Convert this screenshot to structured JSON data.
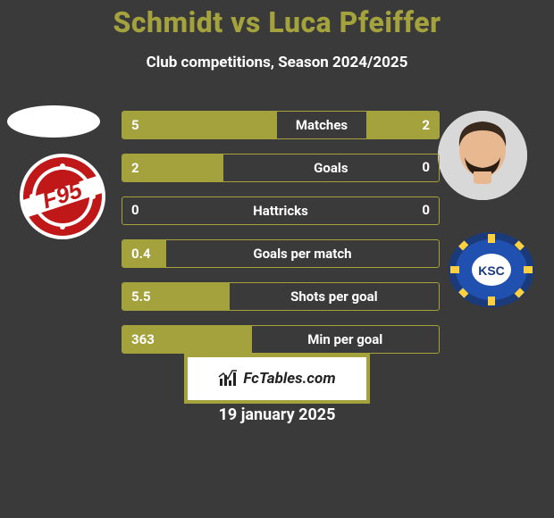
{
  "title_color": "#a4a23c",
  "title": "Schmidt vs Luca Pfeiffer",
  "subtitle": "Club competitions, Season 2024/2025",
  "date": "19 january 2025",
  "footer_logo_text": "FcTables.com",
  "footer_border_color": "#a4a23c",
  "bar_color": "#a4a23c",
  "background_color": "#3a3a3a",
  "text_color": "#ffffff",
  "rows": [
    {
      "label": "Matches",
      "left": "5",
      "right": "2",
      "left_pct": 46,
      "right_pct": 20
    },
    {
      "label": "Goals",
      "left": "2",
      "right": "0",
      "left_pct": 29,
      "right_pct": 0
    },
    {
      "label": "Hattricks",
      "left": "0",
      "right": "0",
      "left_pct": 0,
      "right_pct": 0
    },
    {
      "label": "Goals per match",
      "left": "0.4",
      "right": "",
      "left_pct": 11,
      "right_pct": 0
    },
    {
      "label": "Shots per goal",
      "left": "5.5",
      "right": "",
      "left_pct": 31,
      "right_pct": 0
    },
    {
      "label": "Min per goal",
      "left": "363",
      "right": "",
      "left_pct": 38,
      "right_pct": 0
    }
  ],
  "club_left": {
    "outer": "#ffffff",
    "ring": "#c01818",
    "band": "#ffffff",
    "text": "F95"
  },
  "club_right": {
    "outer": "#1b3a7a",
    "inner": "#2050b0",
    "center": "#ffffff",
    "text": "KSC"
  },
  "avatar_right": {
    "skin": "#e8b890",
    "hair": "#3a2a1e",
    "beard": "#2a1e14",
    "shirt": "#d8d8d8"
  }
}
